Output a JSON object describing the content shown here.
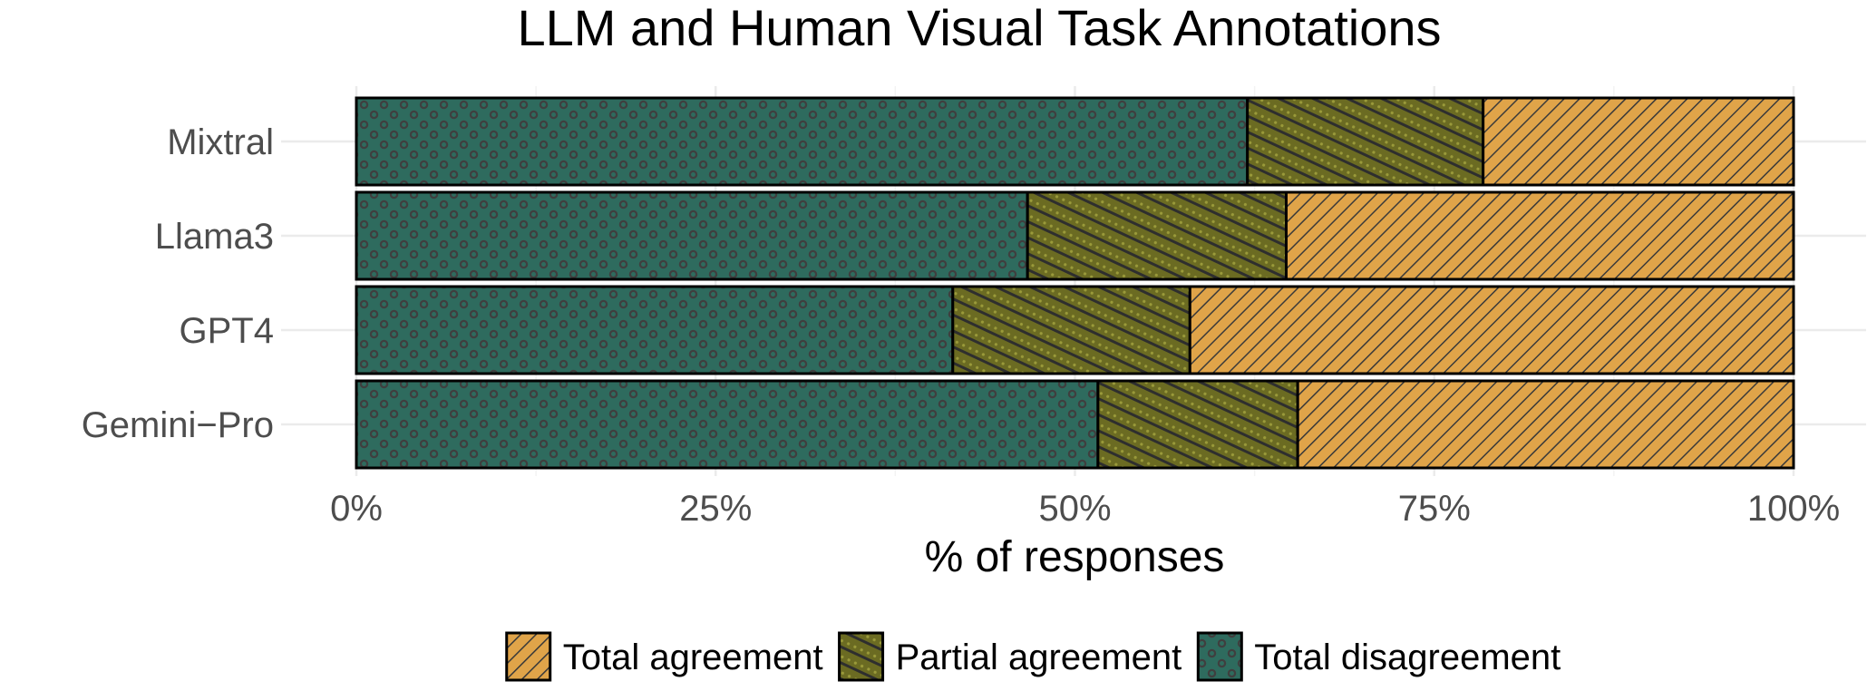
{
  "chart_data": {
    "type": "bar",
    "orientation": "horizontal",
    "stacked": true,
    "title": "LLM and Human Visual Task Annotations",
    "xlabel": "% of responses",
    "ylabel": "",
    "xlim": [
      0,
      100
    ],
    "x_ticks": [
      {
        "value": 0,
        "label": "0%"
      },
      {
        "value": 25,
        "label": "25%"
      },
      {
        "value": 50,
        "label": "50%"
      },
      {
        "value": 75,
        "label": "75%"
      },
      {
        "value": 100,
        "label": "100%"
      }
    ],
    "categories": [
      "Mixtral",
      "Llama3",
      "GPT4",
      "Gemini−Pro"
    ],
    "series": [
      {
        "name": "Total disagreement",
        "values": [
          62,
          46.7,
          41.5,
          51.6
        ],
        "color": "#2e6b5e",
        "pattern": "circles"
      },
      {
        "name": "Partial agreement",
        "values": [
          16.4,
          18,
          16.5,
          13.9
        ],
        "color": "#6b6b22",
        "pattern": "stripes-dotted"
      },
      {
        "name": "Total agreement",
        "values": [
          21.6,
          35.3,
          42,
          34.5
        ],
        "color": "#e0a449",
        "pattern": "stripes"
      }
    ],
    "legend": {
      "position": "bottom",
      "order": [
        "Total agreement",
        "Partial agreement",
        "Total disagreement"
      ]
    },
    "grid": true
  }
}
